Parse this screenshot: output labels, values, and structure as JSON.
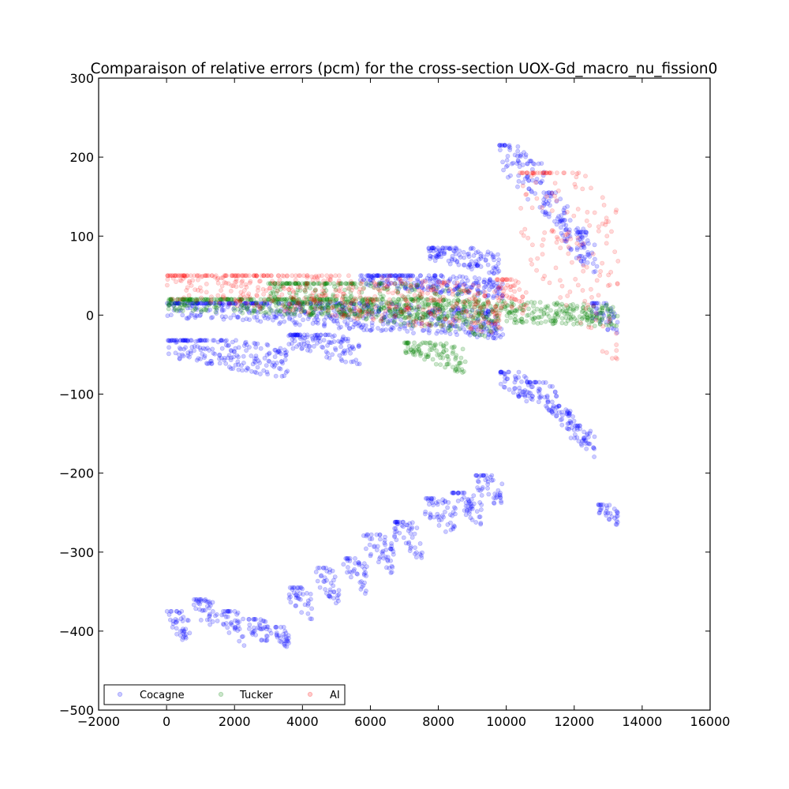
{
  "chart_data": {
    "type": "scatter",
    "title": "Comparaison of relative errors (pcm) for the cross-section UOX-Gd_macro_nu_fission0",
    "xlabel": "",
    "ylabel": "",
    "xlim": [
      -2000,
      16000
    ],
    "ylim": [
      -500,
      300
    ],
    "xticks": [
      -2000,
      0,
      2000,
      4000,
      6000,
      8000,
      10000,
      12000,
      14000,
      16000
    ],
    "yticks": [
      -500,
      -400,
      -300,
      -200,
      -100,
      0,
      100,
      200,
      300
    ],
    "xtick_labels": [
      "−2000",
      "0",
      "2000",
      "4000",
      "6000",
      "8000",
      "10000",
      "12000",
      "14000",
      "16000"
    ],
    "ytick_labels": [
      "−500",
      "−400",
      "−300",
      "−200",
      "−100",
      "0",
      "100",
      "200",
      "300"
    ],
    "grid": false,
    "legend": {
      "position": "lower-left",
      "columns": 3
    },
    "series": [
      {
        "name": "Cocagne",
        "color": "#0000ff",
        "opacity": 0.2,
        "clusters": [
          {
            "x0": 0,
            "x1": 700,
            "y0": -375,
            "y1": -420
          },
          {
            "x0": 800,
            "x1": 1500,
            "y0": -360,
            "y1": -405
          },
          {
            "x0": 1600,
            "x1": 2300,
            "y0": -375,
            "y1": -420
          },
          {
            "x0": 2400,
            "x1": 3100,
            "y0": -385,
            "y1": -425
          },
          {
            "x0": 3200,
            "x1": 3600,
            "y0": -395,
            "y1": -425
          },
          {
            "x0": 3600,
            "x1": 4300,
            "y0": -345,
            "y1": -390
          },
          {
            "x0": 4400,
            "x1": 5100,
            "y0": -320,
            "y1": -370
          },
          {
            "x0": 5200,
            "x1": 5900,
            "y0": -308,
            "y1": -355
          },
          {
            "x0": 5800,
            "x1": 6700,
            "y0": -278,
            "y1": -330
          },
          {
            "x0": 6700,
            "x1": 7600,
            "y0": -262,
            "y1": -315
          },
          {
            "x0": 7600,
            "x1": 8500,
            "y0": -232,
            "y1": -285
          },
          {
            "x0": 8400,
            "x1": 9300,
            "y0": -225,
            "y1": -270
          },
          {
            "x0": 9100,
            "x1": 9900,
            "y0": -203,
            "y1": -250
          },
          {
            "x0": 12700,
            "x1": 13300,
            "y0": -240,
            "y1": -268
          },
          {
            "x0": 9800,
            "x1": 10700,
            "y0": -72,
            "y1": -112
          },
          {
            "x0": 10600,
            "x1": 11500,
            "y0": -85,
            "y1": -130
          },
          {
            "x0": 11300,
            "x1": 12000,
            "y0": -115,
            "y1": -150
          },
          {
            "x0": 11900,
            "x1": 12600,
            "y0": -140,
            "y1": -180
          },
          {
            "x0": 0,
            "x1": 3600,
            "y0": -32,
            "y1": -82
          },
          {
            "x0": 3600,
            "x1": 5700,
            "y0": -25,
            "y1": -65
          },
          {
            "x0": 0,
            "x1": 9900,
            "y0": 15,
            "y1": -30
          },
          {
            "x0": 5700,
            "x1": 9900,
            "y0": 50,
            "y1": 20
          },
          {
            "x0": 7700,
            "x1": 9800,
            "y0": 85,
            "y1": 50
          },
          {
            "x0": 9800,
            "x1": 10700,
            "y0": 215,
            "y1": 140
          },
          {
            "x0": 10600,
            "x1": 11200,
            "y0": 195,
            "y1": 120
          },
          {
            "x0": 11100,
            "x1": 11800,
            "y0": 155,
            "y1": 85
          },
          {
            "x0": 11600,
            "x1": 12300,
            "y0": 120,
            "y1": 60
          },
          {
            "x0": 12100,
            "x1": 12700,
            "y0": 105,
            "y1": 45
          },
          {
            "x0": 12500,
            "x1": 13300,
            "y0": 15,
            "y1": -30
          }
        ]
      },
      {
        "name": "Tucker",
        "color": "#008000",
        "opacity": 0.2,
        "clusters": [
          {
            "x0": 0,
            "x1": 13300,
            "y0": 20,
            "y1": -15
          },
          {
            "x0": 3000,
            "x1": 9800,
            "y0": 40,
            "y1": -30
          },
          {
            "x0": 7000,
            "x1": 8800,
            "y0": -35,
            "y1": -75
          }
        ]
      },
      {
        "name": "AI",
        "color": "#ff0000",
        "opacity": 0.15,
        "clusters": [
          {
            "x0": 0,
            "x1": 9900,
            "y0": 50,
            "y1": -25
          },
          {
            "x0": 9700,
            "x1": 10600,
            "y0": 45,
            "y1": -15
          },
          {
            "x0": 10400,
            "x1": 13300,
            "y0": 180,
            "y1": -70
          }
        ]
      }
    ]
  }
}
